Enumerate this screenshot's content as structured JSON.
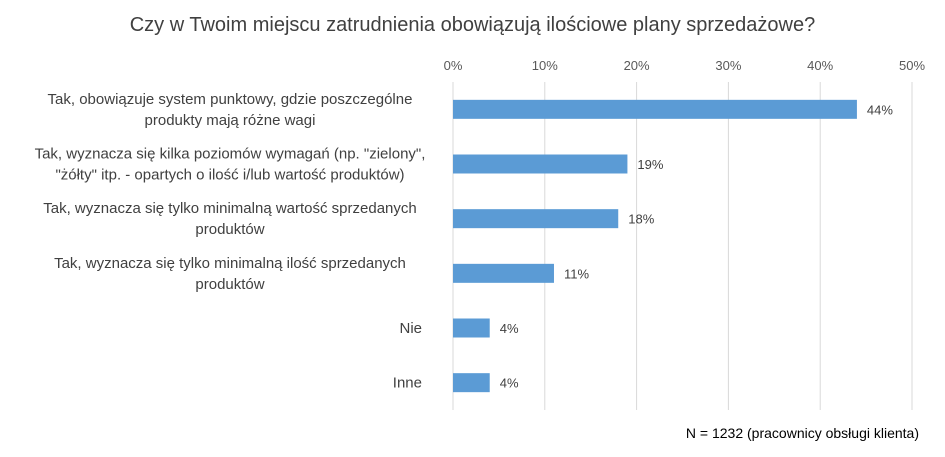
{
  "chart_data": {
    "type": "bar",
    "orientation": "horizontal",
    "title": "Czy w Twoim miejscu zatrudnienia obowiązują ilościowe plany sprzedażowe?",
    "categories": [
      [
        "Tak, obowiązuje system punktowy, gdzie poszczególne",
        "produkty mają różne wagi"
      ],
      [
        "Tak, wyznacza się kilka poziomów wymagań (np. \"zielony\",",
        "\"żółty\" itp. - opartych o ilość i/lub wartość produktów)"
      ],
      [
        "Tak, wyznacza się tylko minimalną wartość sprzedanych",
        "produktów"
      ],
      [
        "Tak, wyznacza się tylko minimalną ilość sprzedanych",
        "produktów"
      ],
      [
        "Nie"
      ],
      [
        "Inne"
      ]
    ],
    "values": [
      44,
      19,
      18,
      11,
      4,
      4
    ],
    "value_labels": [
      "44%",
      "19%",
      "18%",
      "11%",
      "4%",
      "4%"
    ],
    "xlim": [
      0,
      50
    ],
    "x_ticks": [
      0,
      10,
      20,
      30,
      40,
      50
    ],
    "x_tick_labels": [
      "0%",
      "10%",
      "20%",
      "30%",
      "40%",
      "50%"
    ],
    "x_axis_position": "top",
    "grid": true,
    "bar_color": "#5B9BD5",
    "grid_color": "#D9D9D9",
    "note": "N = 1232 (pracownicy obsługi klienta)"
  }
}
